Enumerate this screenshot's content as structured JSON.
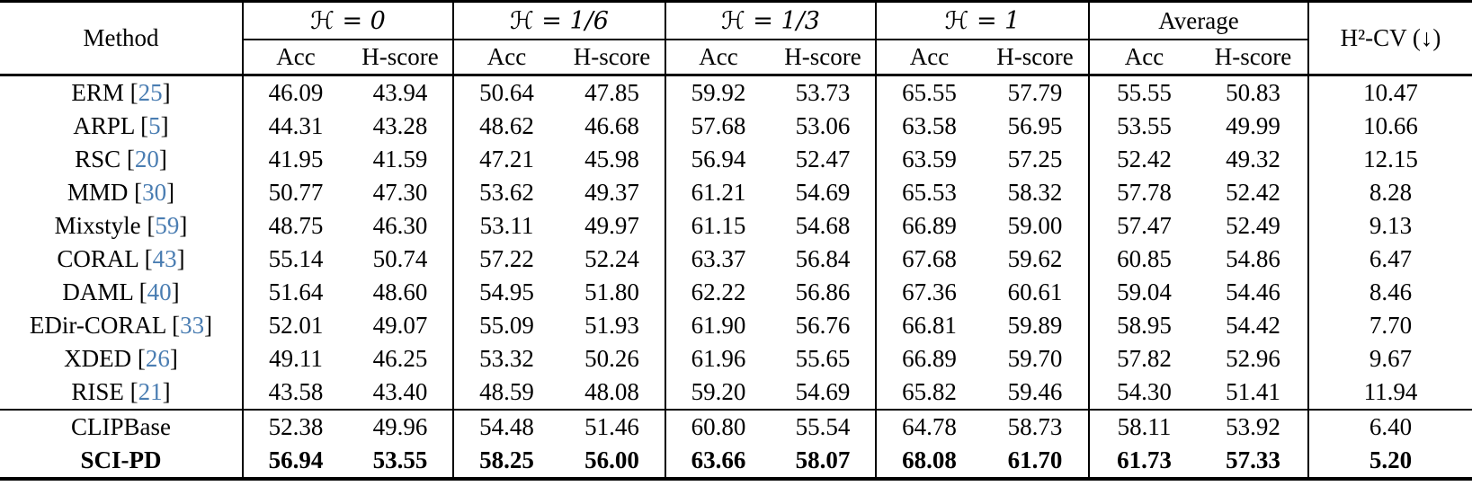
{
  "colors": {
    "citation": "#4a7db2"
  },
  "header": {
    "method_label": "Method",
    "groups": [
      {
        "label": "ℋ = 0"
      },
      {
        "label": "ℋ = 1/6"
      },
      {
        "label": "ℋ = 1/3"
      },
      {
        "label": "ℋ = 1"
      },
      {
        "label": "Average"
      }
    ],
    "subheaders": [
      "Acc",
      "H-score"
    ],
    "last_col_label": "H²-CV (↓)"
  },
  "rows": [
    {
      "method": "ERM",
      "cite": "25",
      "bold": false,
      "section_start": false,
      "values": [
        "46.09",
        "43.94",
        "50.64",
        "47.85",
        "59.92",
        "53.73",
        "65.55",
        "57.79",
        "55.55",
        "50.83",
        "10.47"
      ]
    },
    {
      "method": "ARPL",
      "cite": "5",
      "bold": false,
      "section_start": false,
      "values": [
        "44.31",
        "43.28",
        "48.62",
        "46.68",
        "57.68",
        "53.06",
        "63.58",
        "56.95",
        "53.55",
        "49.99",
        "10.66"
      ]
    },
    {
      "method": "RSC",
      "cite": "20",
      "bold": false,
      "section_start": false,
      "values": [
        "41.95",
        "41.59",
        "47.21",
        "45.98",
        "56.94",
        "52.47",
        "63.59",
        "57.25",
        "52.42",
        "49.32",
        "12.15"
      ]
    },
    {
      "method": "MMD",
      "cite": "30",
      "bold": false,
      "section_start": false,
      "values": [
        "50.77",
        "47.30",
        "53.62",
        "49.37",
        "61.21",
        "54.69",
        "65.53",
        "58.32",
        "57.78",
        "52.42",
        "8.28"
      ]
    },
    {
      "method": "Mixstyle",
      "cite": "59",
      "bold": false,
      "section_start": false,
      "values": [
        "48.75",
        "46.30",
        "53.11",
        "49.97",
        "61.15",
        "54.68",
        "66.89",
        "59.00",
        "57.47",
        "52.49",
        "9.13"
      ]
    },
    {
      "method": "CORAL",
      "cite": "43",
      "bold": false,
      "section_start": false,
      "values": [
        "55.14",
        "50.74",
        "57.22",
        "52.24",
        "63.37",
        "56.84",
        "67.68",
        "59.62",
        "60.85",
        "54.86",
        "6.47"
      ]
    },
    {
      "method": "DAML",
      "cite": "40",
      "bold": false,
      "section_start": false,
      "values": [
        "51.64",
        "48.60",
        "54.95",
        "51.80",
        "62.22",
        "56.86",
        "67.36",
        "60.61",
        "59.04",
        "54.46",
        "8.46"
      ]
    },
    {
      "method": "EDir-CORAL",
      "cite": "33",
      "bold": false,
      "section_start": false,
      "values": [
        "52.01",
        "49.07",
        "55.09",
        "51.93",
        "61.90",
        "56.76",
        "66.81",
        "59.89",
        "58.95",
        "54.42",
        "7.70"
      ]
    },
    {
      "method": "XDED",
      "cite": "26",
      "bold": false,
      "section_start": false,
      "values": [
        "49.11",
        "46.25",
        "53.32",
        "50.26",
        "61.96",
        "55.65",
        "66.89",
        "59.70",
        "57.82",
        "52.96",
        "9.67"
      ]
    },
    {
      "method": "RISE",
      "cite": "21",
      "bold": false,
      "section_start": false,
      "values": [
        "43.58",
        "43.40",
        "48.59",
        "48.08",
        "59.20",
        "54.69",
        "65.82",
        "59.46",
        "54.30",
        "51.41",
        "11.94"
      ]
    },
    {
      "method": "CLIPBase",
      "cite": null,
      "bold": false,
      "section_start": true,
      "values": [
        "52.38",
        "49.96",
        "54.48",
        "51.46",
        "60.80",
        "55.54",
        "64.78",
        "58.73",
        "58.11",
        "53.92",
        "6.40"
      ]
    },
    {
      "method": "SCI-PD",
      "cite": null,
      "bold": true,
      "section_start": false,
      "values": [
        "56.94",
        "53.55",
        "58.25",
        "56.00",
        "63.66",
        "58.07",
        "68.08",
        "61.70",
        "61.73",
        "57.33",
        "5.20"
      ]
    }
  ]
}
